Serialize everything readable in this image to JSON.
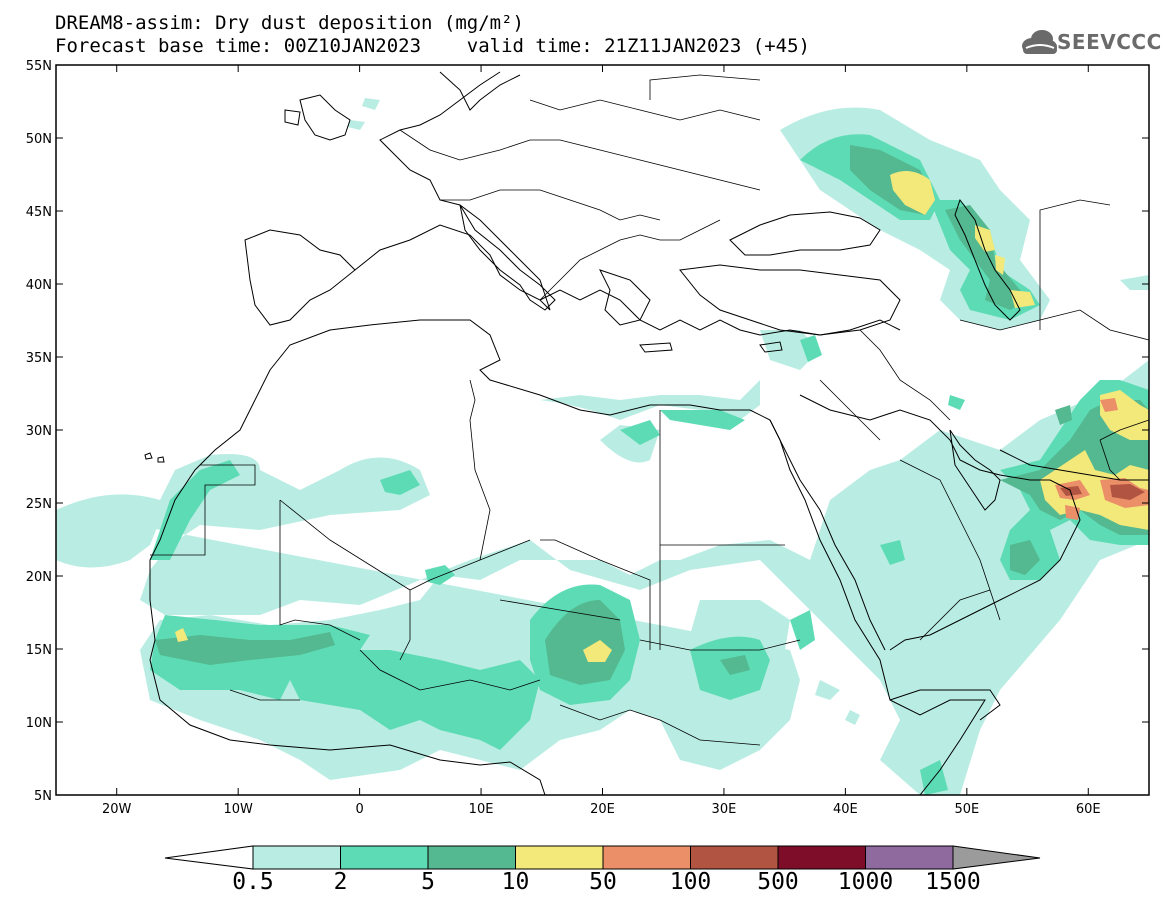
{
  "title": {
    "line1": "DREAM8-assim: Dry dust deposition (mg/m²)",
    "line2": "Forecast base time: 00Z10JAN2023    valid time: 21Z11JAN2023 (+45)"
  },
  "logo": {
    "text": "SEEVCCC",
    "icon": "cloud-logo-icon"
  },
  "map": {
    "region": "North Africa, Europe and Middle East",
    "lon_range": [
      -25,
      65
    ],
    "lat_range": [
      5,
      55
    ],
    "y_ticks": [
      {
        "lat": 55,
        "label": "55N"
      },
      {
        "lat": 50,
        "label": "50N"
      },
      {
        "lat": 45,
        "label": "45N"
      },
      {
        "lat": 40,
        "label": "40N"
      },
      {
        "lat": 35,
        "label": "35N"
      },
      {
        "lat": 30,
        "label": "30N"
      },
      {
        "lat": 25,
        "label": "25N"
      },
      {
        "lat": 20,
        "label": "20N"
      },
      {
        "lat": 15,
        "label": "15N"
      },
      {
        "lat": 10,
        "label": "10N"
      },
      {
        "lat": 5,
        "label": "5N"
      }
    ],
    "x_ticks": [
      {
        "lon": -20,
        "label": "20W"
      },
      {
        "lon": -10,
        "label": "10W"
      },
      {
        "lon": 0,
        "label": "0"
      },
      {
        "lon": 10,
        "label": "10E"
      },
      {
        "lon": 20,
        "label": "20E"
      },
      {
        "lon": 30,
        "label": "30E"
      },
      {
        "lon": 40,
        "label": "40E"
      },
      {
        "lon": 50,
        "label": "50E"
      },
      {
        "lon": 60,
        "label": "60E"
      }
    ]
  },
  "colorbar": {
    "levels": [
      "0.5",
      "2",
      "5",
      "10",
      "50",
      "100",
      "500",
      "1000",
      "1500"
    ],
    "colors": [
      "#b9ede3",
      "#5ddbb4",
      "#54b890",
      "#f3e97a",
      "#ea8f68",
      "#b15542",
      "#7e0d2a",
      "#8e6a9e"
    ],
    "under_color": "#ffffff",
    "over_color": "#9b9b9b"
  },
  "shading_colors": {
    "c05": "#b9ede3",
    "c2": "#5ddbb4",
    "c5": "#54b890",
    "c10": "#f3e97a",
    "c50": "#ea8f68",
    "c100": "#b15542"
  }
}
